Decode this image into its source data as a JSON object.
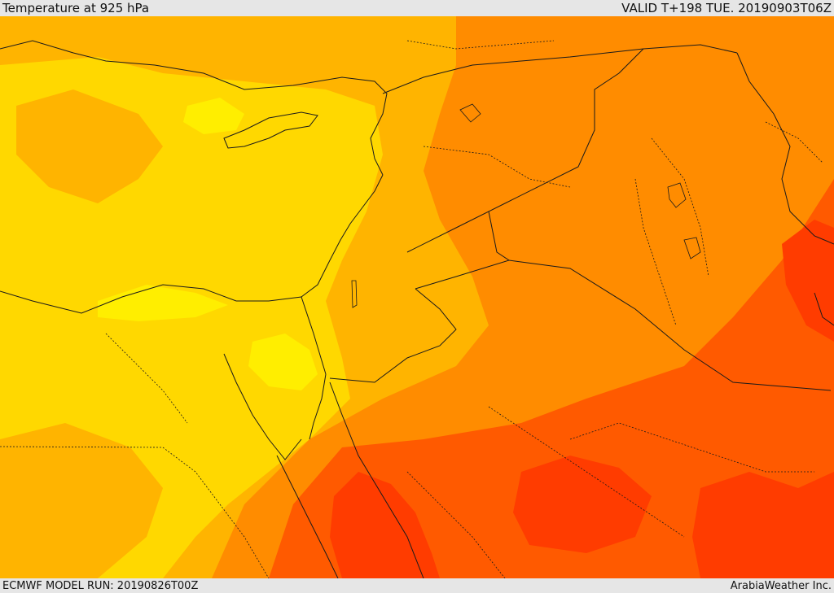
{
  "header": {
    "title": "Temperature at 925 hPa",
    "valid": "VALID T+198 TUE. 20190903T06Z"
  },
  "footer": {
    "model_run": "ECMWF MODEL RUN: 20190826T00Z",
    "credit": "ArabiaWeather Inc."
  },
  "map": {
    "variable": "temperature",
    "level_hpa": 925,
    "palette": {
      "light_yellow": "#ffd800",
      "bright_yellow": "#ffee00",
      "orange_yellow": "#ffb400",
      "orange": "#ff8c00",
      "dark_orange": "#ff5a00",
      "red": "#ff3c00"
    },
    "border_color": "#1a1a1a"
  }
}
